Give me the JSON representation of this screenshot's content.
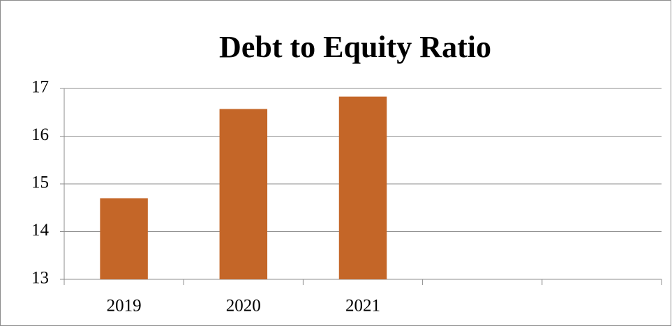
{
  "chart_data": {
    "type": "bar",
    "title": "Debt to Equity Ratio",
    "categories": [
      "2019",
      "2020",
      "2021",
      null,
      null
    ],
    "values": [
      14.7,
      16.57,
      16.83,
      null,
      null
    ],
    "color": "#c46628",
    "ylim": [
      13,
      17
    ],
    "yticks": [
      13,
      14,
      15,
      16,
      17
    ],
    "grid": true
  }
}
